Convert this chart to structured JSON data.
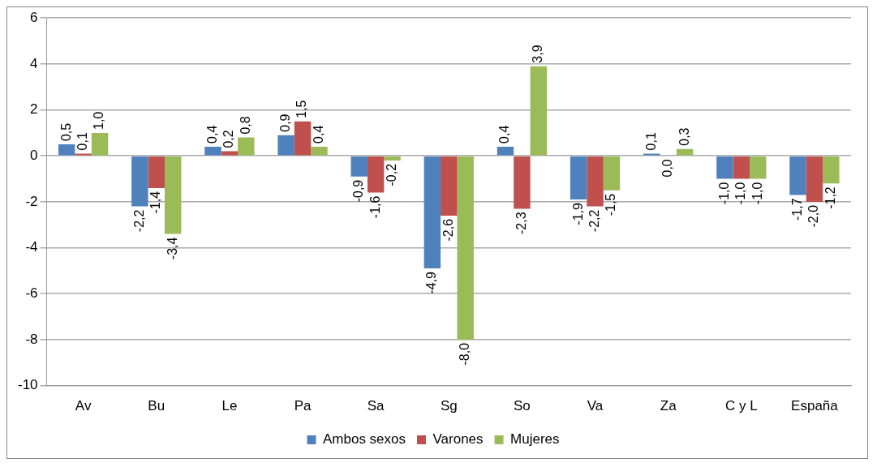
{
  "chart_data": {
    "type": "bar",
    "categories": [
      "Av",
      "Bu",
      "Le",
      "Pa",
      "Sa",
      "Sg",
      "So",
      "Va",
      "Za",
      "C y L",
      "España"
    ],
    "series": [
      {
        "name": "Ambos sexos",
        "color": "#4f81bd",
        "values": [
          0.5,
          -2.2,
          0.4,
          0.9,
          -0.9,
          -4.9,
          0.4,
          -1.9,
          0.1,
          -1.0,
          -1.7
        ],
        "value_labels": [
          "0,5",
          "-2,2",
          "0,4",
          "0,9",
          "-0,9",
          "-4,9",
          "0,4",
          "-1,9",
          "0,1",
          "-1,0",
          "-1,7"
        ]
      },
      {
        "name": "Varones",
        "color": "#c0504d",
        "values": [
          0.1,
          -1.4,
          0.2,
          1.5,
          -1.6,
          -2.6,
          -2.3,
          -2.2,
          0.0,
          -1.0,
          -2.0
        ],
        "value_labels": [
          "0,1",
          "-1,4",
          "0,2",
          "1,5",
          "-1,6",
          "-2,6",
          "-2,3",
          "-2,2",
          "0,0",
          "-1,0",
          "-2,0"
        ]
      },
      {
        "name": "Mujeres",
        "color": "#9bbb59",
        "values": [
          1.0,
          -3.4,
          0.8,
          0.4,
          -0.2,
          -8.0,
          3.9,
          -1.5,
          0.3,
          -1.0,
          -1.2
        ],
        "value_labels": [
          "1,0",
          "-3,4",
          "0,8",
          "0,4",
          "-0,2",
          "-8,0",
          "3,9",
          "-1,5",
          "0,3",
          "-1,0",
          "-1,2"
        ]
      }
    ],
    "ylim": [
      -10,
      6
    ],
    "yticks": [
      -10,
      -8,
      -6,
      -4,
      -2,
      0,
      2,
      4,
      6
    ],
    "grid": "y",
    "legend": "bottom"
  }
}
